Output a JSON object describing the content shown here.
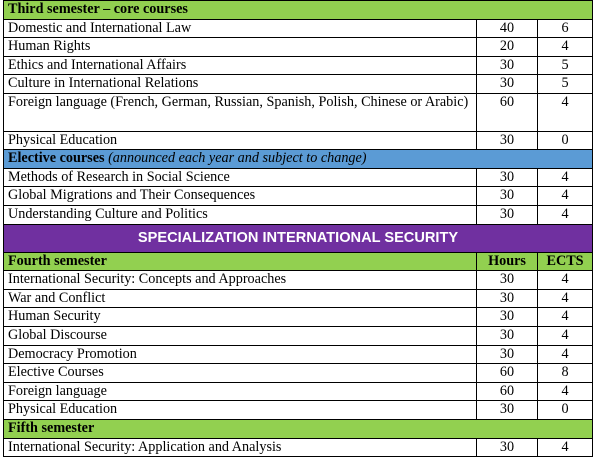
{
  "third_semester": {
    "heading": "Third semester – core courses",
    "courses": [
      {
        "name": "Domestic and International Law",
        "hours": "40",
        "ects": "6"
      },
      {
        "name": "Human Rights",
        "hours": "20",
        "ects": "4"
      },
      {
        "name": "Ethics and International Affairs",
        "hours": "30",
        "ects": "5"
      },
      {
        "name": "Culture in International Relations",
        "hours": "30",
        "ects": "5"
      },
      {
        "name": "Foreign language (French, German, Russian, Spanish, Polish, Chinese or Arabic)",
        "hours": "60",
        "ects": "4"
      },
      {
        "name": "Physical Education",
        "hours": "30",
        "ects": "0"
      }
    ]
  },
  "elective": {
    "heading_bold": "Elective courses",
    "heading_italic": "(announced each year and subject to change)",
    "courses": [
      {
        "name": "Methods of Research in Social Science",
        "hours": "30",
        "ects": "4"
      },
      {
        "name": "Global Migrations and Their Consequences",
        "hours": "30",
        "ects": "4"
      },
      {
        "name": "Understanding Culture and Politics",
        "hours": "30",
        "ects": "4"
      }
    ]
  },
  "specialization": {
    "title": "SPECIALIZATION INTERNATIONAL SECURITY"
  },
  "fourth_semester": {
    "heading": "Fourth semester",
    "hours_label": "Hours",
    "ects_label": "ECTS",
    "courses": [
      {
        "name": "International Security: Concepts and Approaches",
        "hours": "30",
        "ects": "4"
      },
      {
        "name": "War and Conflict",
        "hours": "30",
        "ects": "4"
      },
      {
        "name": "Human Security",
        "hours": "30",
        "ects": "4"
      },
      {
        "name": "Global Discourse",
        "hours": "30",
        "ects": "4"
      },
      {
        "name": "Democracy Promotion",
        "hours": "30",
        "ects": "4"
      },
      {
        "name": "Elective Courses",
        "hours": "60",
        "ects": "8"
      },
      {
        "name": "Foreign language",
        "hours": "60",
        "ects": "4"
      },
      {
        "name": "Physical Education",
        "hours": "30",
        "ects": "0"
      }
    ]
  },
  "fifth_semester": {
    "heading": "Fifth semester",
    "courses": [
      {
        "name": "International Security: Application and Analysis",
        "hours": "30",
        "ects": "4"
      }
    ]
  },
  "colors": {
    "semester_header": "#92d050",
    "elective_header": "#5b9bd5",
    "specialization_banner": "#7030a0"
  }
}
